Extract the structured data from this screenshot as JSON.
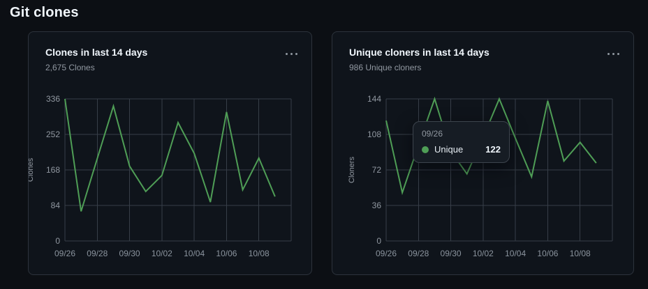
{
  "page": {
    "title": "Git clones"
  },
  "colors": {
    "background": "#0c0f14",
    "card_background": "#0f141b",
    "card_border": "#2d333c",
    "line_green": "#4f9e56",
    "grid_line": "#373e48",
    "muted_text": "#9198a1",
    "title_text": "#f0f6fc"
  },
  "cards": [
    {
      "menu_icon": "kebab-horizontal"
    },
    {
      "menu_icon": "kebab-horizontal"
    }
  ],
  "chart_data": [
    {
      "type": "line",
      "title": "Clones in last 14 days",
      "summary": "2,675 Clones",
      "ylabel": "Clones",
      "x": [
        "09/26",
        "09/27",
        "09/28",
        "09/29",
        "09/30",
        "10/01",
        "10/02",
        "10/03",
        "10/04",
        "10/05",
        "10/06",
        "10/07",
        "10/08",
        "10/09"
      ],
      "x_tick_labels": [
        "09/26",
        "09/28",
        "09/30",
        "10/02",
        "10/04",
        "10/06",
        "10/08"
      ],
      "values": [
        336,
        70,
        195,
        319,
        177,
        117,
        155,
        280,
        207,
        92,
        305,
        121,
        196,
        105
      ],
      "yticks": [
        0,
        84,
        168,
        252,
        336
      ],
      "ylim": [
        0,
        336
      ],
      "line_color": "#4f9e56",
      "grid": true,
      "legend": "none"
    },
    {
      "type": "line",
      "title": "Unique cloners in last 14 days",
      "summary": "986 Unique cloners",
      "ylabel": "Cloners",
      "x": [
        "09/26",
        "09/27",
        "09/28",
        "09/29",
        "09/30",
        "10/01",
        "10/02",
        "10/03",
        "10/04",
        "10/05",
        "10/06",
        "10/07",
        "10/08",
        "10/09"
      ],
      "x_tick_labels": [
        "09/26",
        "09/28",
        "09/30",
        "10/02",
        "10/04",
        "10/06",
        "10/08"
      ],
      "values": [
        122,
        49,
        97,
        144,
        91,
        68,
        105,
        144,
        104,
        65,
        142,
        81,
        100,
        79
      ],
      "yticks": [
        0,
        36,
        72,
        108,
        144
      ],
      "ylim": [
        0,
        144
      ],
      "line_color": "#4f9e56",
      "grid": true,
      "legend": "none",
      "tooltip": {
        "date": "09/26",
        "series": "Unique",
        "value": 122
      }
    }
  ]
}
